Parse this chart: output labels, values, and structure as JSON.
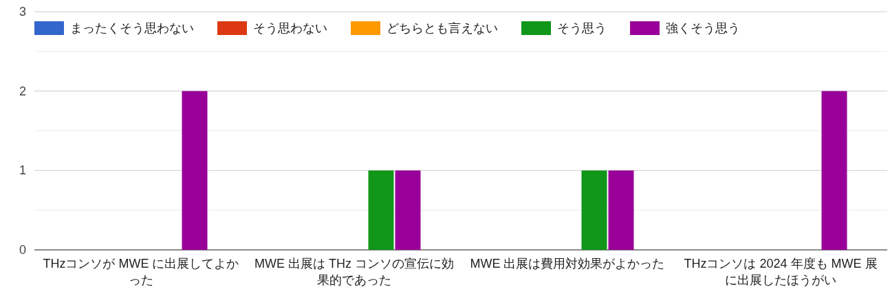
{
  "chart_data": {
    "type": "bar",
    "categories": [
      "THzコンソが MWE に出展してよかった",
      "MWE 出展は THz コンソの宣伝に効果的であった",
      "MWE 出展は費用対効果がよかった",
      "THzコンソは 2024 年度も MWE 展に出展したほうがい"
    ],
    "series": [
      {
        "name": "まったくそう思わない",
        "color": "#3366cc",
        "values": [
          0,
          0,
          0,
          0
        ]
      },
      {
        "name": "そう思わない",
        "color": "#dc3912",
        "values": [
          0,
          0,
          0,
          0
        ]
      },
      {
        "name": "どちらとも言えない",
        "color": "#ff9900",
        "values": [
          0,
          0,
          0,
          0
        ]
      },
      {
        "name": "そう思う",
        "color": "#109618",
        "values": [
          0,
          1,
          1,
          0
        ]
      },
      {
        "name": "強くそう思う",
        "color": "#990099",
        "values": [
          2,
          1,
          1,
          2
        ]
      }
    ],
    "ylim": [
      0,
      3
    ],
    "yticks": [
      0,
      {
        "value": 0.5,
        "label": null
      },
      1,
      {
        "value": 1.5,
        "label": null
      },
      2,
      {
        "value": 2.5,
        "label": null
      },
      3
    ],
    "grid": "y",
    "legend": "top"
  }
}
